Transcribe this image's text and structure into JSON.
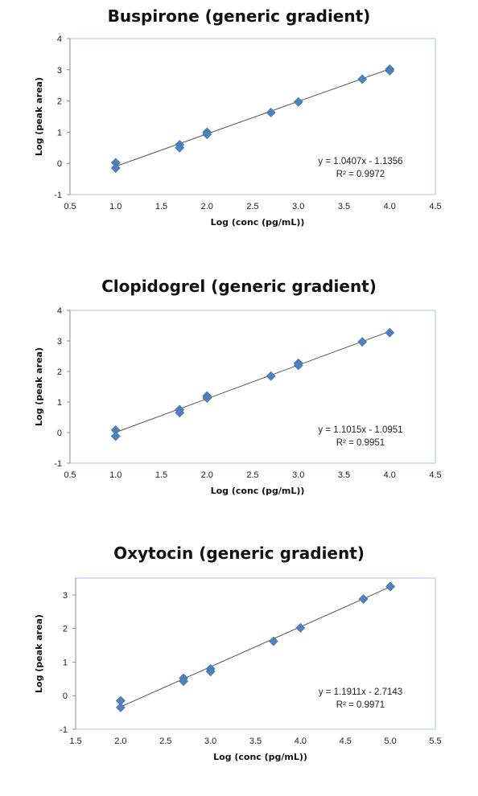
{
  "chart_data": [
    {
      "type": "scatter",
      "title": "Buspirone (generic gradient)",
      "xlabel": "Log (conc (pg/mL))",
      "ylabel": "Log (peak area)",
      "xlim": [
        0.5,
        4.5
      ],
      "ylim": [
        -1,
        4
      ],
      "xticks": [
        "0.5",
        "1.0",
        "1.5",
        "2.0",
        "2.5",
        "3.0",
        "3.5",
        "4.0",
        "4.5"
      ],
      "yticks": [
        "-1",
        "0",
        "1",
        "2",
        "3",
        "4"
      ],
      "grid": false,
      "points": [
        {
          "x": 1.0,
          "y": 0.02
        },
        {
          "x": 1.0,
          "y": -0.15
        },
        {
          "x": 1.7,
          "y": 0.6
        },
        {
          "x": 1.7,
          "y": 0.5
        },
        {
          "x": 2.0,
          "y": 1.0
        },
        {
          "x": 2.0,
          "y": 0.93
        },
        {
          "x": 2.7,
          "y": 1.63
        },
        {
          "x": 3.0,
          "y": 1.97
        },
        {
          "x": 3.7,
          "y": 2.7
        },
        {
          "x": 4.0,
          "y": 3.02
        },
        {
          "x": 4.0,
          "y": 2.97
        }
      ],
      "trendline": {
        "slope": 1.0407,
        "intercept": -1.1356,
        "x_range": [
          1.0,
          4.0
        ]
      },
      "equation": "y = 1.0407x - 1.1356",
      "r_squared": "R² = 0.9972",
      "marker_color": "#4F81BD",
      "line_color": "#555555"
    },
    {
      "type": "scatter",
      "title": "Clopidogrel (generic gradient)",
      "xlabel": "Log (conc (pg/mL))",
      "ylabel": "Log (peak area)",
      "xlim": [
        0.5,
        4.5
      ],
      "ylim": [
        -1,
        4
      ],
      "xticks": [
        "0.5",
        "1.0",
        "1.5",
        "2.0",
        "2.5",
        "3.0",
        "3.5",
        "4.0",
        "4.5"
      ],
      "yticks": [
        "-1",
        "0",
        "1",
        "2",
        "3",
        "4"
      ],
      "grid": false,
      "points": [
        {
          "x": 1.0,
          "y": 0.08
        },
        {
          "x": 1.0,
          "y": -0.12
        },
        {
          "x": 1.7,
          "y": 0.75
        },
        {
          "x": 1.7,
          "y": 0.65
        },
        {
          "x": 2.0,
          "y": 1.2
        },
        {
          "x": 2.0,
          "y": 1.13
        },
        {
          "x": 2.7,
          "y": 1.85
        },
        {
          "x": 3.0,
          "y": 2.27
        },
        {
          "x": 3.0,
          "y": 2.2
        },
        {
          "x": 3.7,
          "y": 2.97
        },
        {
          "x": 4.0,
          "y": 3.27
        }
      ],
      "trendline": {
        "slope": 1.1015,
        "intercept": -1.0951,
        "x_range": [
          1.0,
          4.0
        ]
      },
      "equation": "y = 1.1015x - 1.0951",
      "r_squared": "R² = 0.9951",
      "marker_color": "#4F81BD",
      "line_color": "#555555"
    },
    {
      "type": "scatter",
      "title": "Oxytocin (generic gradient)",
      "xlabel": "Log (conc (pg/mL))",
      "ylabel": "Log (peak area)",
      "xlim": [
        1.5,
        5.5
      ],
      "ylim": [
        -1,
        3.5
      ],
      "xticks": [
        "1.5",
        "2.0",
        "2.5",
        "3.0",
        "3.5",
        "4.0",
        "4.5",
        "5.0",
        "5.5"
      ],
      "yticks": [
        "-1",
        "0",
        "1",
        "2",
        "3"
      ],
      "grid": false,
      "points": [
        {
          "x": 2.0,
          "y": -0.15
        },
        {
          "x": 2.0,
          "y": -0.35
        },
        {
          "x": 2.7,
          "y": 0.52
        },
        {
          "x": 2.7,
          "y": 0.43
        },
        {
          "x": 3.0,
          "y": 0.8
        },
        {
          "x": 3.0,
          "y": 0.72
        },
        {
          "x": 3.7,
          "y": 1.62
        },
        {
          "x": 4.0,
          "y": 2.02
        },
        {
          "x": 4.7,
          "y": 2.88
        },
        {
          "x": 5.0,
          "y": 3.25
        }
      ],
      "trendline": {
        "slope": 1.1911,
        "intercept": -2.7143,
        "x_range": [
          2.0,
          5.0
        ]
      },
      "equation": "y = 1.1911x - 2.7143",
      "r_squared": "R² = 0.9971",
      "marker_color": "#4F81BD",
      "line_color": "#555555"
    }
  ]
}
